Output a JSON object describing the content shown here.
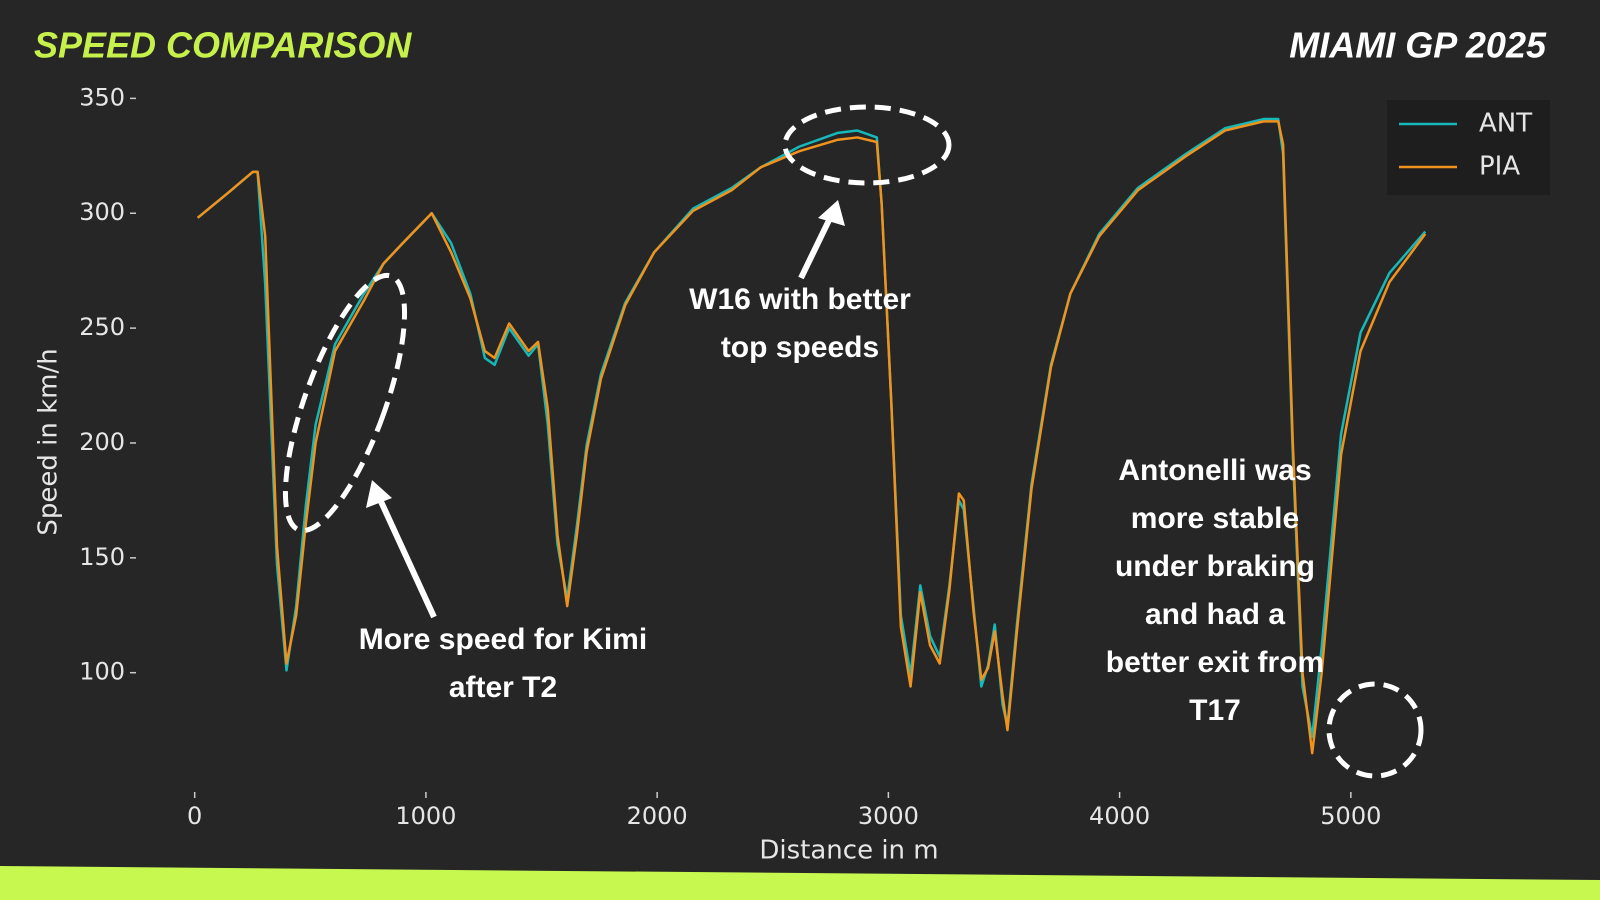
{
  "chart_data": {
    "type": "line",
    "title": "SPEED COMPARISON",
    "subtitle": "MIAMI GP 2025",
    "x_label": "Distance in m",
    "y_label": "Speed in km/h",
    "x": [
      13,
      146,
      251,
      272,
      305,
      356,
      397,
      439,
      481,
      523,
      607,
      732,
      816,
      900,
      1025,
      1109,
      1192,
      1255,
      1297,
      1360,
      1444,
      1485,
      1527,
      1569,
      1611,
      1653,
      1695,
      1757,
      1862,
      1987,
      2155,
      2322,
      2448,
      2615,
      2782,
      2866,
      2950,
      2971,
      3013,
      3054,
      3096,
      3138,
      3180,
      3222,
      3264,
      3305,
      3326,
      3368,
      3402,
      3431,
      3460,
      3494,
      3515,
      3556,
      3619,
      3703,
      3787,
      3912,
      4079,
      4289,
      4456,
      4623,
      4686,
      4707,
      4749,
      4791,
      4833,
      4874,
      4958,
      5042,
      5167,
      5322
    ],
    "series": [
      {
        "name": "ANT",
        "color": "#17b8b8",
        "values": [
          298,
          309,
          318,
          318,
          269,
          147,
          101,
          129,
          173,
          208,
          243,
          265,
          278,
          287,
          300,
          287,
          265,
          237,
          234,
          250,
          238,
          243,
          208,
          156,
          132,
          164,
          199,
          230,
          261,
          283,
          302,
          311,
          320,
          329,
          335,
          336,
          333,
          304,
          217,
          125,
          99,
          138,
          116,
          107,
          138,
          175,
          171,
          129,
          94,
          103,
          121,
          86,
          77,
          121,
          182,
          234,
          265,
          291,
          311,
          326,
          337,
          341,
          341,
          326,
          195,
          94,
          72,
          111,
          204,
          248,
          274,
          292
        ]
      },
      {
        "name": "PIA",
        "color": "#f0921e",
        "values": [
          298,
          309,
          318,
          318,
          290,
          155,
          104,
          125,
          165,
          200,
          240,
          262,
          278,
          287,
          300,
          283,
          263,
          240,
          237,
          252,
          240,
          244,
          215,
          160,
          129,
          160,
          196,
          228,
          260,
          283,
          301,
          310,
          320,
          327,
          332,
          333,
          331,
          304,
          217,
          120,
          94,
          135,
          112,
          104,
          136,
          178,
          175,
          127,
          97,
          102,
          118,
          90,
          75,
          118,
          180,
          233,
          265,
          290,
          310,
          325,
          336,
          340,
          340,
          330,
          200,
          100,
          65,
          100,
          195,
          240,
          270,
          291
        ]
      }
    ],
    "xlim": [
      -150,
      5550
    ],
    "ylim": [
      62,
      358
    ],
    "xticks": [
      0,
      1000,
      2000,
      3000,
      4000,
      5000
    ],
    "yticks": [
      100,
      150,
      200,
      250,
      300,
      350
    ],
    "legend": "top-right",
    "grid": false,
    "annotations": [
      {
        "lines": [
          "More speed for Kimi",
          "after T2"
        ]
      },
      {
        "lines": [
          "W16 with better",
          "top speeds"
        ]
      },
      {
        "lines": [
          "Antonelli was",
          "more stable",
          "under braking",
          "and had a",
          "better exit from",
          "T17"
        ]
      }
    ]
  }
}
